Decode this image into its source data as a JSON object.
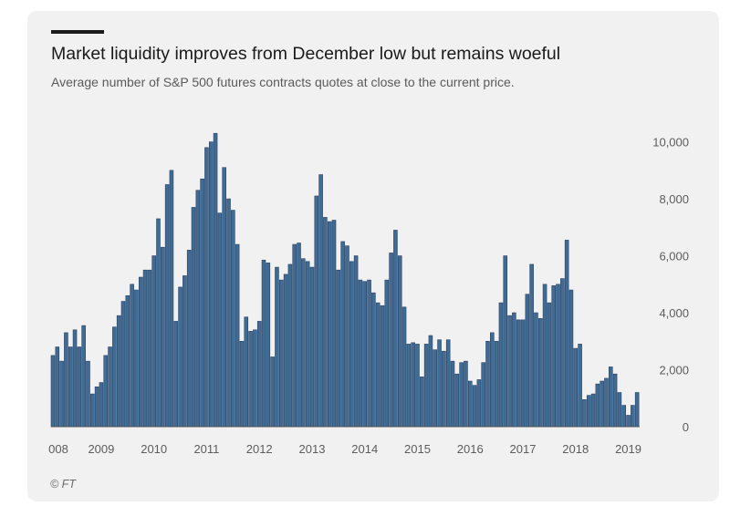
{
  "header": {
    "title": "Market liquidity improves from December low but remains woeful",
    "subtitle": "Average number of S&P 500 futures contracts quotes at close to the current price."
  },
  "source": "© FT",
  "colors": {
    "bar_fill": "#3e6c95",
    "bar_stroke": "#2a3f63",
    "background": "#f1f1f1",
    "baseline": "#555555"
  },
  "chart_data": {
    "type": "bar",
    "xlabel": "",
    "ylabel": "",
    "ylim": [
      0,
      10500
    ],
    "grid": false,
    "y_axis_side": "right",
    "y_ticks": [
      {
        "value": 0,
        "label": "0"
      },
      {
        "value": 2000,
        "label": "2,000"
      },
      {
        "value": 4000,
        "label": "4,000"
      },
      {
        "value": 6000,
        "label": "6,000"
      },
      {
        "value": 8000,
        "label": "8,000"
      },
      {
        "value": 10000,
        "label": "10,000"
      }
    ],
    "x_ticks": [
      {
        "index": 0,
        "label": "008"
      },
      {
        "index": 11,
        "label": "2009"
      },
      {
        "index": 23,
        "label": "2010"
      },
      {
        "index": 35,
        "label": "2011"
      },
      {
        "index": 47,
        "label": "2012"
      },
      {
        "index": 59,
        "label": "2013"
      },
      {
        "index": 71,
        "label": "2014"
      },
      {
        "index": 83,
        "label": "2015"
      },
      {
        "index": 95,
        "label": "2016"
      },
      {
        "index": 107,
        "label": "2017"
      },
      {
        "index": 119,
        "label": "2018"
      },
      {
        "index": 131,
        "label": "2019"
      }
    ],
    "values": [
      2500,
      2800,
      2300,
      3300,
      2800,
      3400,
      2800,
      3550,
      2300,
      1150,
      1400,
      1550,
      2500,
      2800,
      3500,
      3900,
      4400,
      4600,
      5000,
      4800,
      5250,
      5500,
      5500,
      6000,
      7300,
      6300,
      8500,
      9000,
      3700,
      4900,
      5300,
      6200,
      7700,
      8300,
      8700,
      9800,
      10000,
      10300,
      7500,
      9100,
      8000,
      7600,
      6400,
      3000,
      3850,
      3350,
      3400,
      3700,
      5850,
      5750,
      2450,
      5600,
      5150,
      5350,
      5700,
      6400,
      6450,
      5900,
      5800,
      5600,
      8100,
      8850,
      7350,
      7200,
      7250,
      5500,
      6500,
      6350,
      5800,
      6000,
      5150,
      5100,
      5150,
      4700,
      4350,
      4250,
      5150,
      6100,
      6900,
      6000,
      4200,
      2900,
      2950,
      2900,
      1750,
      2900,
      3200,
      2700,
      3050,
      2650,
      3050,
      2300,
      1850,
      2250,
      2300,
      1600,
      1450,
      1650,
      2250,
      3000,
      3300,
      3000,
      4350,
      6000,
      3900,
      4000,
      3750,
      3750,
      4650,
      5700,
      4000,
      3800,
      5000,
      4350,
      4950,
      5000,
      5200,
      6550,
      4800,
      2750,
      2900,
      950,
      1100,
      1150,
      1500,
      1600,
      1700,
      2100,
      1850,
      1200,
      750,
      400,
      750,
      1200
    ]
  }
}
